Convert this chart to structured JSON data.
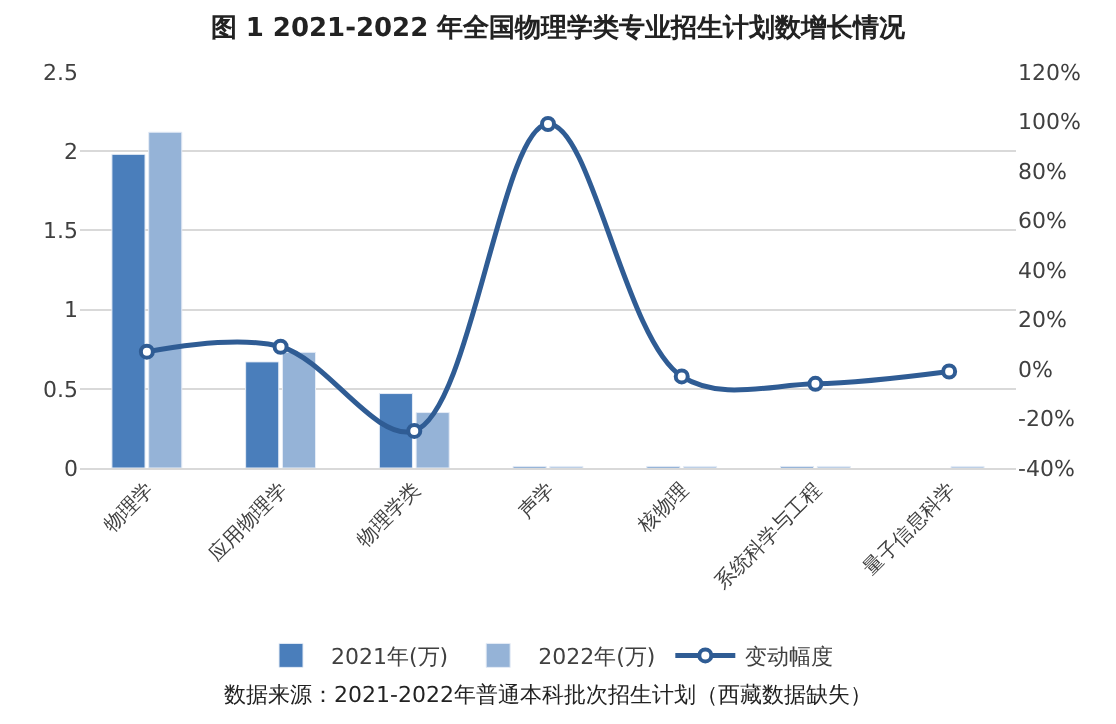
{
  "chart_data": {
    "type": "bar",
    "title": "图 1 2021-2022 年全国物理学类专业招生计划数增长情况",
    "categories": [
      "物理学",
      "应用物理学",
      "物理学类",
      "声学",
      "核物理",
      "系统科学与工程",
      "量子信息科学"
    ],
    "series": [
      {
        "name": "2021年(万)",
        "color": "#4a7ebb",
        "values": [
          1.98,
          0.67,
          0.47,
          0.01,
          0.01,
          0.01,
          null
        ]
      },
      {
        "name": "2022年(万)",
        "color": "#95b3d7",
        "values": [
          2.12,
          0.73,
          0.35,
          0.01,
          0.01,
          0.01,
          0.01
        ]
      },
      {
        "name": "变动幅度",
        "type": "line",
        "axis": "y2",
        "color": "#2f5c94",
        "marker": "circle",
        "values": [
          7,
          9,
          -25,
          99,
          -3,
          -6,
          -1
        ]
      }
    ],
    "ylim": [
      0,
      2.5
    ],
    "yticks": [
      0,
      0.5,
      1,
      1.5,
      2,
      {
        "value": 2.5,
        "label": "2.5"
      }
    ],
    "y2lim": [
      -40,
      120
    ],
    "y2ticks": [
      {
        "value": -40,
        "label": "-40%"
      },
      {
        "value": -20,
        "label": "-20%"
      },
      {
        "value": 0,
        "label": "0%"
      },
      {
        "value": 20,
        "label": "20%"
      },
      {
        "value": 40,
        "label": "40%"
      },
      {
        "value": 60,
        "label": "60%"
      },
      {
        "value": 80,
        "label": "80%"
      },
      {
        "value": 100,
        "label": "100%"
      },
      {
        "value": 120,
        "label": "120%"
      }
    ],
    "grid": "y",
    "legend": "bottom",
    "annotations": [
      "数据来源：2021-2022年普通本科批次招生计划（西藏数据缺失）"
    ]
  }
}
